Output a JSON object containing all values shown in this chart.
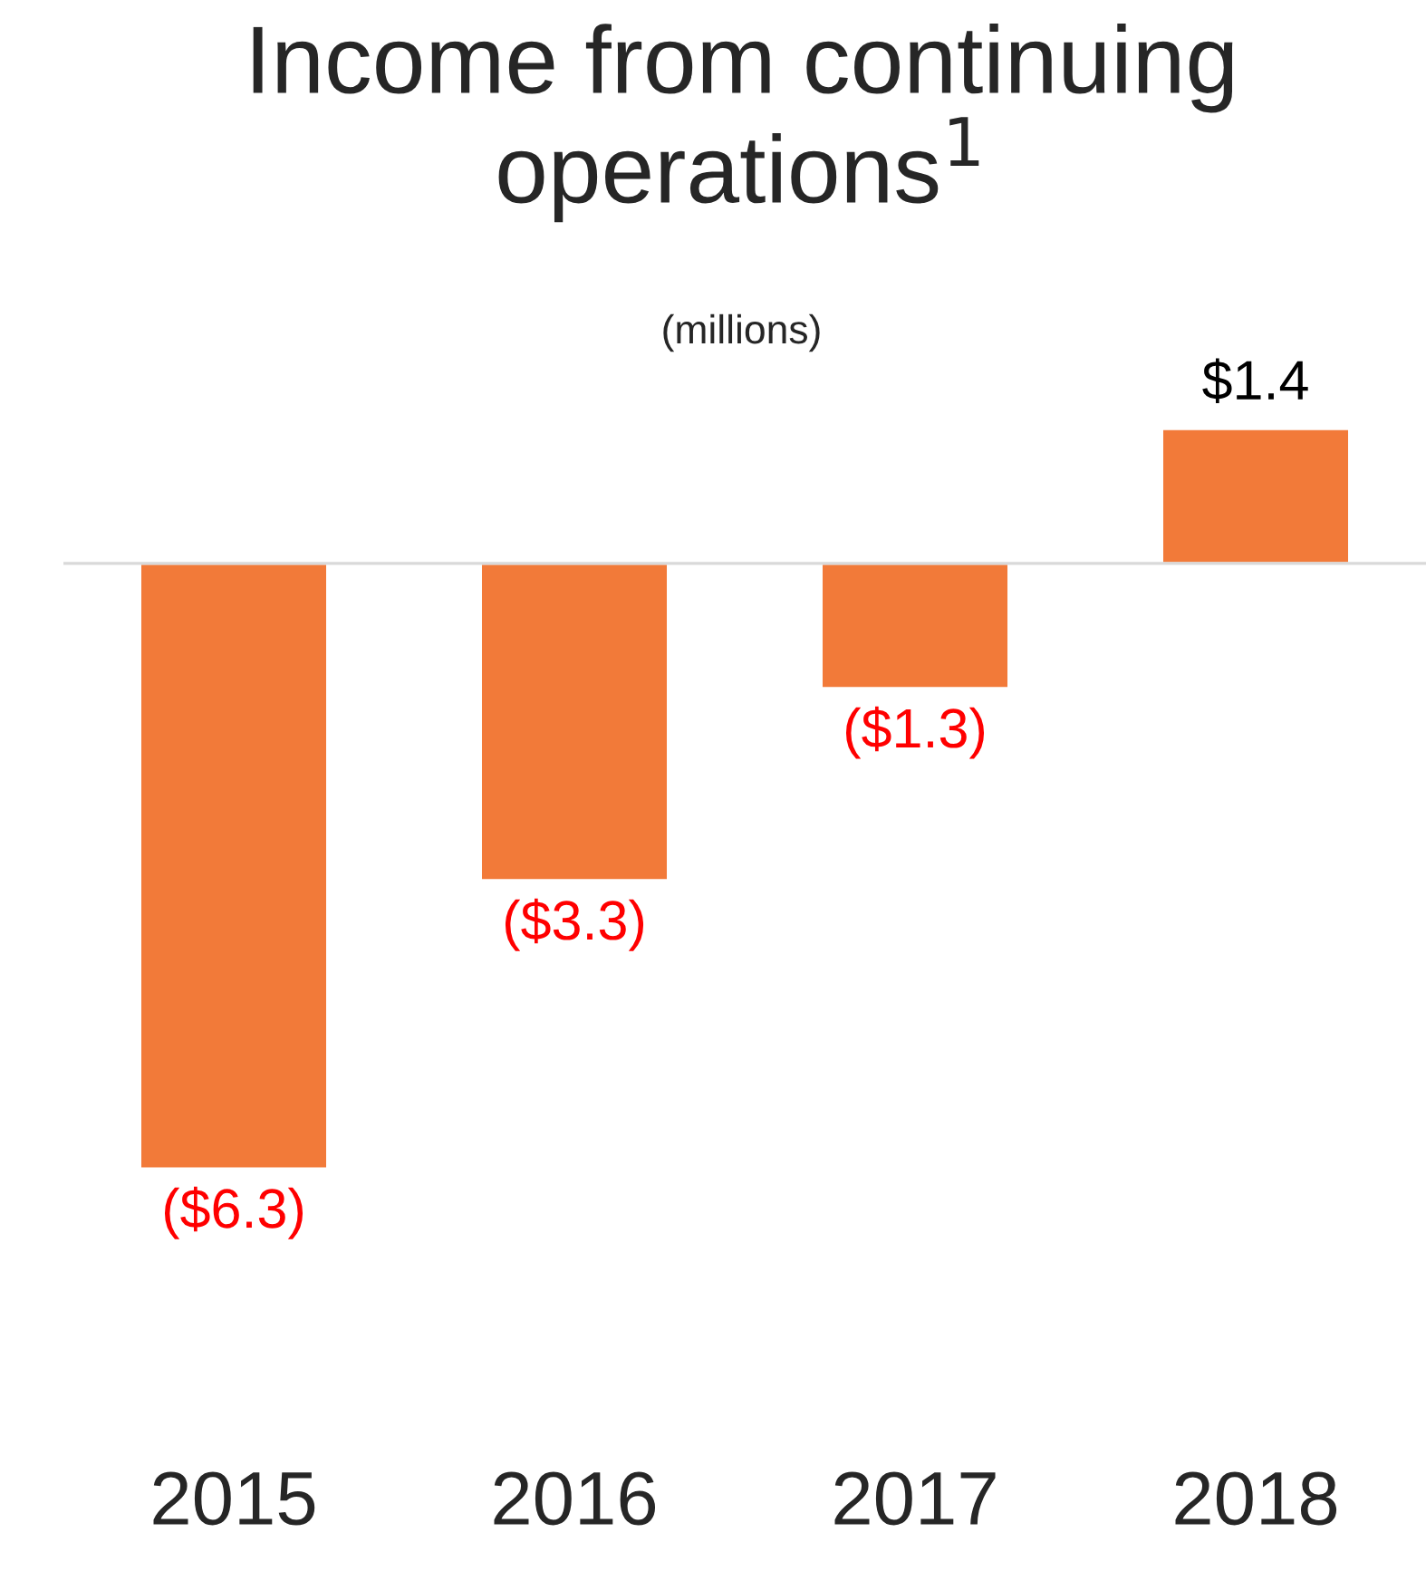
{
  "chart_data": {
    "type": "bar",
    "title": "Income from continuing operations$^{1}$",
    "subtitle": "(millions)",
    "categories": [
      "2015",
      "2016",
      "2017",
      "2018"
    ],
    "values": [
      -6.3,
      -3.3,
      -1.3,
      1.4
    ],
    "value_labels": [
      "($6.3)",
      "($3.3)",
      "($1.3)",
      "$1.4"
    ],
    "color": "#f27a39",
    "grid": false,
    "legend": false
  }
}
